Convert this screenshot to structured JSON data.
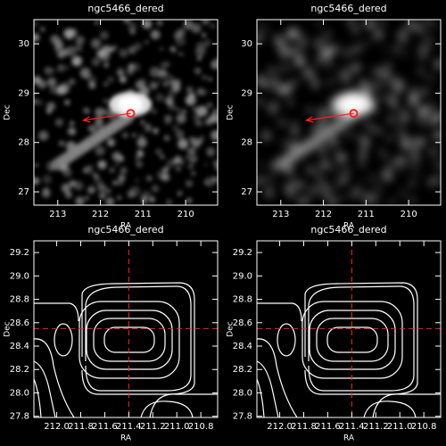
{
  "chart_data": [
    {
      "type": "image",
      "title": "ngc5466_dered",
      "xlabel": "RA",
      "ylabel": "Dec",
      "xlim": [
        213.56,
        209.25
      ],
      "ylim": [
        26.73,
        30.49
      ],
      "xticks": [
        213,
        212,
        211,
        210
      ],
      "yticks": [
        27,
        28,
        29,
        30
      ],
      "smooth": 1,
      "arrow": {
        "x0": 211.29,
        "y0": 28.59,
        "x1": 212.4,
        "y1": 28.45
      },
      "color": "#ff2020"
    },
    {
      "type": "image",
      "title": "ngc5466_dered",
      "xlabel": "RA",
      "ylabel": "Dec",
      "xlim": [
        213.56,
        209.25
      ],
      "ylim": [
        26.73,
        30.49
      ],
      "xticks": [
        213,
        212,
        211,
        210
      ],
      "yticks": [
        27,
        28,
        29,
        30
      ],
      "smooth": 2.5,
      "arrow": {
        "x0": 211.29,
        "y0": 28.59,
        "x1": 212.4,
        "y1": 28.45
      },
      "color": "#ff2020"
    },
    {
      "type": "contour",
      "title": "ngc5466_dered",
      "xlabel": "RA",
      "ylabel": "Dec",
      "xlim": [
        212.19,
        210.66
      ],
      "ylim": [
        27.79,
        29.3
      ],
      "xticks": [
        {
          "value": 212,
          "label": "212.0"
        },
        211.8,
        211.6,
        211.4,
        211.2,
        {
          "value": 211,
          "label": "211.0"
        },
        210.8
      ],
      "yticks": [
        27.8,
        {
          "value": 28,
          "label": "28.0"
        },
        28.2,
        28.4,
        28.6,
        28.8,
        {
          "value": 29,
          "label": "29.0"
        },
        29.2
      ],
      "crosshair": {
        "x": 211.4,
        "y": 28.55
      },
      "color": "#ff2020"
    },
    {
      "type": "contour",
      "title": "ngc5466_dered",
      "xlabel": "RA",
      "ylabel": "Dec",
      "xlim": [
        212.19,
        210.66
      ],
      "ylim": [
        27.79,
        29.3
      ],
      "xticks": [
        {
          "value": 212,
          "label": "212.0"
        },
        211.8,
        211.6,
        211.4,
        211.2,
        {
          "value": 211,
          "label": "211.0"
        },
        210.8
      ],
      "yticks": [
        27.8,
        {
          "value": 28,
          "label": "28.0"
        },
        28.2,
        28.4,
        28.6,
        28.8,
        {
          "value": 29,
          "label": "29.0"
        },
        29.2
      ],
      "crosshair": {
        "x": 211.4,
        "y": 28.55
      },
      "color": "#ff2020"
    }
  ]
}
